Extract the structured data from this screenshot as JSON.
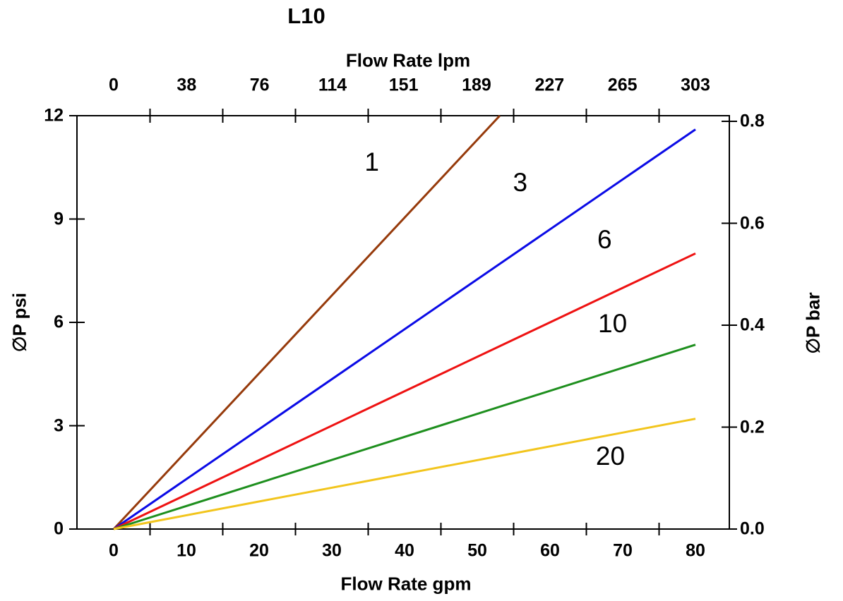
{
  "chart_data": {
    "type": "line",
    "title": "L10",
    "background": "#FFFFFF",
    "axis_color": "#000000",
    "grid": "off",
    "legend": "inline curve labels (micron ratings)",
    "axes": {
      "top": {
        "label": "Flow Rate lpm",
        "ticks": [
          0,
          38,
          76,
          114,
          151,
          189,
          227,
          265,
          303
        ]
      },
      "bottom": {
        "label": "Flow Rate gpm",
        "ticks": [
          0,
          10,
          20,
          30,
          40,
          50,
          60,
          70,
          80
        ]
      },
      "left": {
        "label": "∅P psi",
        "ticks": [
          0,
          3,
          6,
          9,
          12
        ],
        "range": [
          0,
          12
        ]
      },
      "right": {
        "label": "∅P bar",
        "ticks": [
          "0.0",
          "0.2",
          "0.4",
          "0.6",
          "0.8"
        ],
        "range": [
          0,
          0.8
        ]
      }
    },
    "points_units": "[flow gpm, pressure-drop psi]",
    "series": [
      {
        "label": "1",
        "color": "#963A0B",
        "points": [
          [
            0,
            0
          ],
          [
            53.1,
            12
          ]
        ],
        "label_pos": [
          35.5,
          10.65
        ]
      },
      {
        "label": "3",
        "color": "#0B0BE6",
        "points": [
          [
            0,
            0
          ],
          [
            80,
            11.6
          ]
        ],
        "label_pos": [
          55.9,
          10.05
        ]
      },
      {
        "label": "6",
        "color": "#EE1212",
        "points": [
          [
            0,
            0
          ],
          [
            80,
            8.0
          ]
        ],
        "label_pos": [
          67.5,
          8.4
        ]
      },
      {
        "label": "10",
        "color": "#1E8F1E",
        "points": [
          [
            0,
            0
          ],
          [
            80,
            5.35
          ]
        ],
        "label_pos": [
          68.6,
          5.95
        ]
      },
      {
        "label": "20",
        "color": "#F2C51D",
        "points": [
          [
            0,
            0
          ],
          [
            80,
            3.2
          ]
        ],
        "label_pos": [
          68.3,
          2.1
        ]
      }
    ]
  }
}
